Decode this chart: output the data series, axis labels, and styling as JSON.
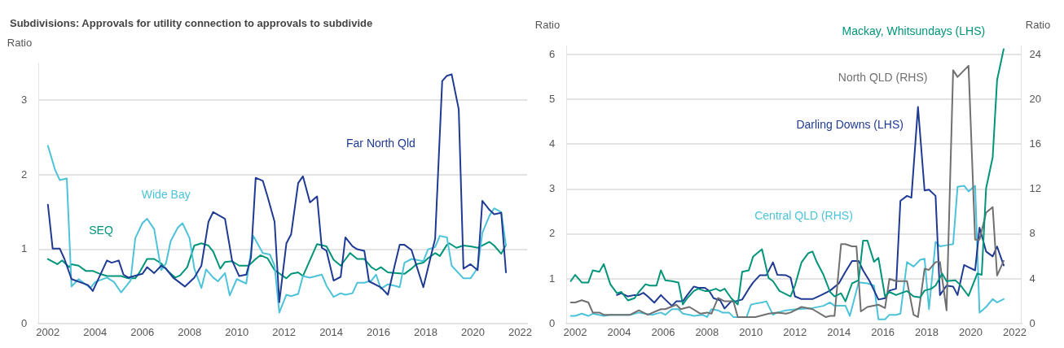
{
  "chart_data": [
    {
      "type": "line",
      "title": "Subdivisions: Approvals for utility connection to approvals to subdivide",
      "ylabel": "Ratio",
      "xlim": [
        2001.6,
        2022.3
      ],
      "xticks": [
        2002,
        2004,
        2006,
        2008,
        2010,
        2012,
        2014,
        2016,
        2018,
        2020,
        2022
      ],
      "ylim": [
        0,
        3.5
      ],
      "yticks": [
        0,
        1,
        2,
        3
      ],
      "grid": "y",
      "legend": false,
      "marker": "none",
      "line_style": "solid",
      "series": [
        {
          "name": "Far North Qld",
          "color": "#1f3a93",
          "x": [
            2002.0,
            2002.2,
            2002.5,
            2002.7,
            2003.0,
            2003.7,
            2003.9,
            2004.5,
            2004.7,
            2005.0,
            2005.2,
            2005.4,
            2006.0,
            2006.2,
            2006.5,
            2006.8,
            2007.0,
            2007.3,
            2007.8,
            2008.2,
            2008.5,
            2008.8,
            2009.0,
            2009.5,
            2009.8,
            2010.1,
            2010.4,
            2010.6,
            2010.8,
            2011.1,
            2011.3,
            2011.6,
            2011.8,
            2012.1,
            2012.3,
            2012.6,
            2012.8,
            2013.1,
            2013.4,
            2013.6,
            2013.8,
            2014.1,
            2014.4,
            2014.6,
            2014.9,
            2015.1,
            2015.4,
            2015.6,
            2016.1,
            2016.4,
            2016.7,
            2016.9,
            2017.1,
            2017.4,
            2017.9,
            2018.4,
            2018.7,
            2018.9,
            2019.1,
            2019.4,
            2019.6,
            2019.9,
            2020.2,
            2020.4,
            2020.7,
            2020.9,
            2021.2,
            2021.4
          ],
          "values": [
            1.6,
            1.01,
            1.01,
            0.87,
            0.6,
            0.52,
            0.44,
            0.85,
            0.82,
            0.85,
            0.66,
            0.62,
            0.67,
            0.76,
            0.68,
            0.78,
            0.74,
            0.62,
            0.5,
            0.62,
            0.78,
            1.37,
            1.5,
            1.41,
            0.85,
            0.64,
            0.66,
            0.89,
            1.96,
            1.92,
            1.71,
            1.37,
            0.29,
            1.08,
            1.2,
            1.89,
            1.98,
            1.63,
            1.71,
            1.02,
            0.98,
            0.58,
            0.63,
            1.16,
            1.04,
            1.0,
            0.98,
            0.57,
            0.49,
            0.39,
            0.8,
            1.06,
            1.06,
            0.99,
            0.49,
            1.14,
            3.26,
            3.33,
            3.35,
            2.88,
            0.74,
            0.8,
            0.72,
            1.65,
            1.53,
            1.47,
            1.49,
            0.69
          ]
        },
        {
          "name": "Wide Bay",
          "color": "#4dc3d9",
          "x": [
            2002.0,
            2002.3,
            2002.5,
            2002.8,
            2003.0,
            2003.3,
            2003.8,
            2004.0,
            2004.5,
            2004.8,
            2005.1,
            2005.5,
            2005.7,
            2006.0,
            2006.2,
            2006.5,
            2006.8,
            2007.0,
            2007.2,
            2007.5,
            2007.7,
            2008.0,
            2008.2,
            2008.5,
            2008.7,
            2009.0,
            2009.2,
            2009.5,
            2009.7,
            2010.0,
            2010.4,
            2010.7,
            2011.1,
            2011.4,
            2011.6,
            2011.8,
            2012.1,
            2012.3,
            2012.6,
            2012.8,
            2013.1,
            2013.6,
            2013.8,
            2014.1,
            2014.4,
            2014.6,
            2014.9,
            2015.1,
            2015.4,
            2015.7,
            2015.9,
            2016.1,
            2016.4,
            2016.7,
            2016.9,
            2017.1,
            2017.4,
            2017.9,
            2018.1,
            2018.4,
            2018.6,
            2018.9,
            2019.1,
            2019.6,
            2019.9,
            2020.2,
            2020.4,
            2020.7,
            2020.9,
            2021.2,
            2021.4
          ],
          "values": [
            2.39,
            2.07,
            1.93,
            1.95,
            0.5,
            0.6,
            0.48,
            0.56,
            0.62,
            0.56,
            0.42,
            0.58,
            1.15,
            1.35,
            1.41,
            1.27,
            0.72,
            0.81,
            1.11,
            1.29,
            1.35,
            1.15,
            0.74,
            0.48,
            0.73,
            0.62,
            0.57,
            0.68,
            0.38,
            0.6,
            0.54,
            1.18,
            0.95,
            0.93,
            0.78,
            0.15,
            0.39,
            0.37,
            0.4,
            0.64,
            0.62,
            0.66,
            0.51,
            0.36,
            0.41,
            0.39,
            0.41,
            0.55,
            0.55,
            0.58,
            0.66,
            0.47,
            0.53,
            0.51,
            0.49,
            0.82,
            0.87,
            0.84,
            1.0,
            1.03,
            1.18,
            1.16,
            0.78,
            0.61,
            0.61,
            0.75,
            1.22,
            1.45,
            1.55,
            1.5,
            1.05
          ]
        },
        {
          "name": "SEQ",
          "color": "#00957a",
          "x": [
            2002.0,
            2002.4,
            2002.6,
            2002.9,
            2003.0,
            2003.3,
            2003.6,
            2003.9,
            2004.2,
            2004.5,
            2005.1,
            2005.4,
            2005.7,
            2005.9,
            2006.2,
            2006.5,
            2006.8,
            2007.1,
            2007.4,
            2007.6,
            2007.9,
            2008.2,
            2008.5,
            2008.8,
            2009.0,
            2009.3,
            2009.5,
            2009.8,
            2010.1,
            2010.5,
            2010.8,
            2011.0,
            2011.3,
            2011.6,
            2012.1,
            2012.3,
            2012.6,
            2012.8,
            2013.4,
            2013.8,
            2014.1,
            2014.4,
            2014.8,
            2015.1,
            2015.4,
            2015.7,
            2015.9,
            2016.1,
            2016.4,
            2017.1,
            2017.4,
            2017.6,
            2017.9,
            2018.1,
            2018.4,
            2018.6,
            2018.9,
            2019.0,
            2019.3,
            2019.6,
            2019.9,
            2020.2,
            2020.7,
            2020.9,
            2021.2,
            2021.4
          ],
          "values": [
            0.87,
            0.8,
            0.85,
            0.76,
            0.8,
            0.78,
            0.71,
            0.71,
            0.67,
            0.64,
            0.64,
            0.61,
            0.61,
            0.7,
            0.87,
            0.87,
            0.81,
            0.7,
            0.62,
            0.65,
            0.76,
            1.05,
            1.08,
            1.05,
            0.97,
            0.74,
            0.83,
            0.84,
            0.78,
            0.78,
            0.87,
            0.92,
            0.88,
            0.72,
            0.61,
            0.67,
            0.69,
            0.64,
            1.07,
            1.04,
            0.86,
            0.78,
            0.95,
            0.87,
            0.87,
            0.76,
            0.72,
            0.76,
            0.69,
            0.67,
            0.74,
            0.8,
            0.82,
            0.88,
            0.95,
            0.91,
            1.06,
            1.08,
            1.02,
            1.05,
            1.04,
            1.02,
            1.1,
            1.05,
            0.94,
            1.06
          ]
        }
      ]
    },
    {
      "type": "line",
      "ylabel": "Ratio",
      "y2label": "Ratio",
      "xlim": [
        2001.6,
        2022.3
      ],
      "xticks": [
        2002,
        2004,
        2006,
        2008,
        2010,
        2012,
        2014,
        2016,
        2018,
        2020,
        2022
      ],
      "ylim": [
        0,
        6.2
      ],
      "yticks": [
        0,
        1,
        2,
        3,
        4,
        5,
        6
      ],
      "y2lim": [
        0,
        24.8
      ],
      "y2ticks": [
        0,
        4,
        8,
        12,
        16,
        20,
        24
      ],
      "grid": "y",
      "legend": false,
      "marker": "none",
      "line_style": "solid",
      "series": [
        {
          "name": "Mackay, Whitsundays (LHS)",
          "color": "#00957a",
          "x": [
            2001.8,
            2002.0,
            2002.3,
            2002.6,
            2002.8,
            2003.1,
            2003.3,
            2003.6,
            2003.9,
            2004.1,
            2004.4,
            2004.7,
            2004.9,
            2005.2,
            2005.4,
            2005.7,
            2005.9,
            2006.1,
            2006.4,
            2006.7,
            2006.9,
            2007.1,
            2007.4,
            2007.6,
            2007.9,
            2008.1,
            2008.4,
            2008.6,
            2008.8,
            2009.1,
            2009.4,
            2009.6,
            2009.9,
            2010.1,
            2010.5,
            2010.8,
            2011.0,
            2011.3,
            2011.8,
            2012.0,
            2012.3,
            2012.6,
            2012.8,
            2013.0,
            2013.3,
            2013.6,
            2013.8,
            2014.1,
            2014.3,
            2014.6,
            2014.9,
            2015.1,
            2015.3,
            2015.6,
            2015.8,
            2016.1,
            2016.3,
            2016.6,
            2017.1,
            2017.4,
            2017.7,
            2017.9,
            2018.2,
            2018.4,
            2018.7,
            2018.9,
            2019.3,
            2019.5,
            2019.9,
            2020.3,
            2020.5,
            2020.7,
            2021.0,
            2021.2,
            2021.5
          ],
          "values": [
            0.95,
            1.09,
            0.92,
            0.92,
            1.19,
            1.16,
            1.33,
            0.88,
            0.68,
            0.71,
            0.52,
            0.57,
            0.71,
            0.88,
            0.85,
            0.85,
            1.19,
            0.97,
            0.95,
            0.92,
            0.43,
            0.57,
            0.73,
            0.78,
            0.73,
            0.73,
            0.78,
            0.73,
            0.78,
            0.57,
            0.43,
            1.16,
            1.19,
            1.5,
            1.66,
            1.02,
            0.95,
            0.73,
            0.61,
            0.85,
            1.37,
            1.57,
            1.61,
            1.37,
            1.09,
            0.71,
            0.61,
            0.68,
            0.5,
            0.9,
            0.97,
            1.85,
            1.85,
            1.38,
            1.47,
            0.61,
            0.71,
            0.64,
            0.73,
            0.61,
            0.59,
            0.74,
            0.78,
            0.85,
            1.12,
            0.95,
            0.97,
            0.88,
            0.62,
            1.12,
            1.09,
            3.02,
            3.71,
            5.43,
            6.12
          ]
        },
        {
          "name": "North QLD (RHS)",
          "color": "#707070",
          "axis": "y2",
          "x": [
            2001.8,
            2002.0,
            2002.3,
            2002.6,
            2002.8,
            2003.1,
            2003.3,
            2004.5,
            2004.9,
            2005.3,
            2005.9,
            2006.1,
            2006.6,
            2006.8,
            2007.2,
            2007.7,
            2008.0,
            2008.2,
            2008.5,
            2008.8,
            2009.2,
            2009.4,
            2010.2,
            2010.8,
            2011.2,
            2011.6,
            2011.8,
            2012.3,
            2012.8,
            2013.4,
            2013.6,
            2013.8,
            2014.1,
            2014.3,
            2014.6,
            2014.8,
            2015.0,
            2015.3,
            2015.8,
            2016.1,
            2016.3,
            2016.6,
            2017.1,
            2017.4,
            2017.6,
            2017.9,
            2018.1,
            2018.4,
            2018.6,
            2018.9,
            2019.2,
            2019.4,
            2019.9,
            2020.2,
            2020.4,
            2020.7,
            2021.0,
            2021.2,
            2021.5
          ],
          "values": [
            1.9,
            1.9,
            2.1,
            1.9,
            1.0,
            1.0,
            0.8,
            0.8,
            1.2,
            0.8,
            1.3,
            1.3,
            1.7,
            1.3,
            1.5,
            0.9,
            1.0,
            0.9,
            2.3,
            2.0,
            2.0,
            0.6,
            0.6,
            0.9,
            1.0,
            0.9,
            1.0,
            1.5,
            1.3,
            0.6,
            0.7,
            0.7,
            7.1,
            7.1,
            6.9,
            6.9,
            1.1,
            1.5,
            1.7,
            1.4,
            4.0,
            3.8,
            3.8,
            0.8,
            0.6,
            4.9,
            4.8,
            5.5,
            5.5,
            1.2,
            22.6,
            22.0,
            23.0,
            7.5,
            7.5,
            9.9,
            10.4,
            4.3,
            5.6
          ]
        },
        {
          "name": "Darling Downs (LHS)",
          "color": "#1f3a93",
          "x": [
            2003.9,
            2004.1,
            2004.4,
            2004.7,
            2004.9,
            2005.1,
            2005.3,
            2005.6,
            2005.9,
            2006.1,
            2006.4,
            2006.6,
            2006.9,
            2007.1,
            2007.4,
            2007.6,
            2007.9,
            2008.1,
            2008.3,
            2008.6,
            2008.8,
            2009.1,
            2009.3,
            2009.6,
            2009.9,
            2010.1,
            2010.4,
            2010.7,
            2011.0,
            2011.2,
            2011.6,
            2011.8,
            2012.0,
            2012.3,
            2012.8,
            2013.2,
            2013.6,
            2014.0,
            2014.3,
            2014.6,
            2014.9,
            2015.1,
            2015.4,
            2015.8,
            2016.1,
            2016.3,
            2016.6,
            2016.8,
            2017.1,
            2017.3,
            2017.6,
            2017.9,
            2018.1,
            2018.4,
            2018.6,
            2018.9,
            2019.2,
            2019.4,
            2019.7,
            2019.9,
            2020.2,
            2020.4,
            2020.7,
            2021.0,
            2021.2,
            2021.5
          ],
          "values": [
            0.64,
            0.68,
            0.61,
            0.64,
            0.64,
            0.69,
            0.61,
            0.47,
            0.64,
            0.54,
            0.4,
            0.5,
            0.5,
            0.64,
            0.83,
            0.8,
            0.8,
            0.73,
            0.57,
            0.52,
            0.34,
            0.5,
            0.5,
            0.54,
            0.78,
            0.92,
            1.08,
            1.08,
            1.37,
            1.09,
            1.08,
            1.03,
            0.61,
            0.55,
            0.55,
            0.64,
            0.74,
            0.9,
            1.16,
            1.4,
            1.4,
            1.19,
            0.95,
            0.54,
            0.57,
            0.74,
            0.78,
            2.74,
            2.85,
            2.81,
            4.83,
            2.97,
            2.99,
            2.85,
            0.64,
            0.85,
            0.83,
            0.64,
            1.31,
            1.26,
            1.19,
            2.14,
            1.61,
            1.5,
            1.72,
            1.3
          ]
        },
        {
          "name": "Central QLD (RHS)",
          "color": "#4dc3d9",
          "axis": "y2",
          "x": [
            2001.8,
            2002.0,
            2002.3,
            2002.6,
            2002.8,
            2003.3,
            2003.6,
            2004.5,
            2004.9,
            2005.5,
            2005.9,
            2006.1,
            2006.4,
            2006.7,
            2006.9,
            2007.2,
            2007.4,
            2007.8,
            2008.0,
            2008.2,
            2008.5,
            2008.7,
            2009.0,
            2009.2,
            2009.8,
            2010.0,
            2010.2,
            2010.5,
            2010.7,
            2011.0,
            2011.2,
            2011.6,
            2012.1,
            2012.8,
            2013.3,
            2013.6,
            2013.8,
            2014.3,
            2014.5,
            2014.9,
            2015.3,
            2015.6,
            2015.8,
            2016.1,
            2016.3,
            2016.6,
            2016.8,
            2017.1,
            2017.4,
            2017.7,
            2017.9,
            2018.1,
            2018.4,
            2018.6,
            2018.9,
            2019.2,
            2019.4,
            2019.7,
            2019.9,
            2020.2,
            2020.4,
            2020.7,
            2021.0,
            2021.2,
            2021.5
          ],
          "values": [
            0.7,
            0.7,
            0.9,
            0.7,
            0.9,
            0.7,
            0.8,
            0.8,
            1.0,
            0.8,
            1.0,
            0.8,
            1.3,
            1.3,
            0.9,
            0.8,
            0.7,
            0.8,
            0.6,
            1.3,
            1.2,
            1.0,
            1.0,
            0.6,
            0.6,
            1.7,
            1.8,
            1.9,
            2.0,
            0.8,
            1.0,
            1.2,
            1.3,
            1.4,
            1.6,
            1.9,
            1.6,
            1.6,
            0.7,
            3.7,
            3.6,
            3.4,
            0.4,
            0.4,
            0.8,
            0.8,
            0.9,
            5.5,
            5.1,
            5.7,
            5.8,
            1.3,
            7.3,
            6.9,
            7.0,
            7.1,
            12.2,
            12.3,
            11.8,
            12.3,
            1.0,
            1.5,
            2.2,
            1.9,
            2.2
          ]
        }
      ]
    }
  ]
}
